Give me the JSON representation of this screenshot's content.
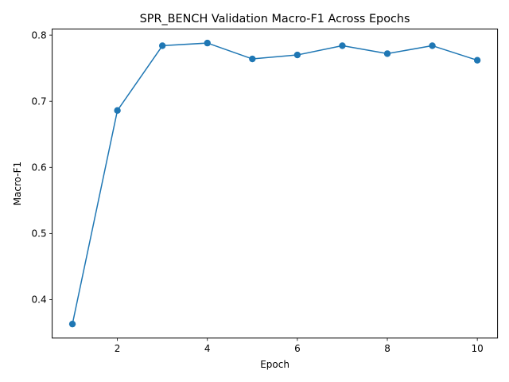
{
  "chart_data": {
    "type": "line",
    "title": "SPR_BENCH Validation Macro-F1 Across Epochs",
    "xlabel": "Epoch",
    "ylabel": "Macro-F1",
    "x": [
      1,
      2,
      3,
      4,
      5,
      6,
      7,
      8,
      9,
      10
    ],
    "series": [
      {
        "values": [
          0.363,
          0.686,
          0.784,
          0.788,
          0.764,
          0.77,
          0.784,
          0.772,
          0.784,
          0.762
        ],
        "color": "#1f77b4"
      }
    ],
    "xlim": [
      0.55,
      10.45
    ],
    "ylim": [
      0.3418,
      0.8093
    ],
    "xticks": [
      2,
      4,
      6,
      8,
      10
    ],
    "xtick_labels": [
      "2",
      "4",
      "6",
      "8",
      "10"
    ],
    "yticks": [
      0.4,
      0.5,
      0.6,
      0.7,
      0.8
    ],
    "ytick_labels": [
      "0.4",
      "0.5",
      "0.6",
      "0.7",
      "0.8"
    ],
    "grid": false,
    "marker": "circle"
  }
}
